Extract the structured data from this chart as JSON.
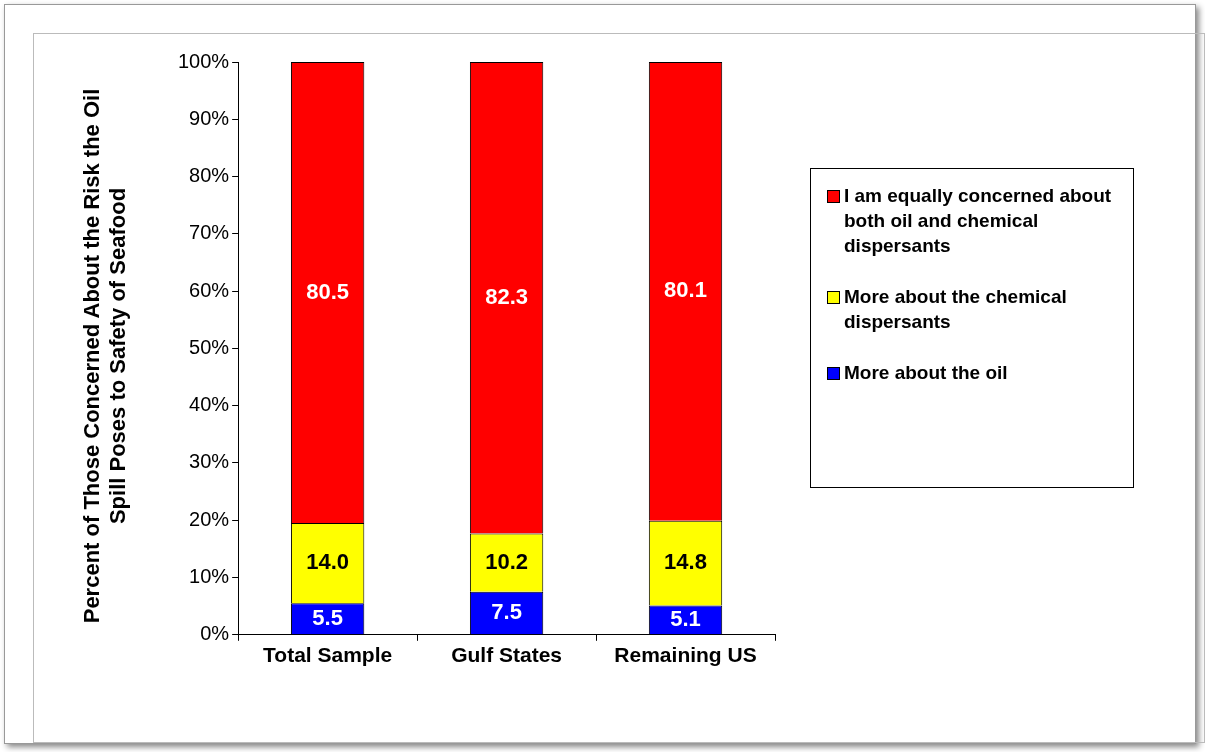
{
  "chart_data": {
    "type": "bar",
    "stacked": true,
    "ylabel": "Percent of Those Concerned About the Risk the Oil Spill Poses to Safety of Seafood",
    "categories": [
      "Total Sample",
      "Gulf States",
      "Remaining US"
    ],
    "ylim": [
      0,
      100
    ],
    "yticks": [
      {
        "value": 0,
        "label": "0%"
      },
      {
        "value": 10,
        "label": "10%"
      },
      {
        "value": 20,
        "label": "20%"
      },
      {
        "value": 30,
        "label": "30%"
      },
      {
        "value": 40,
        "label": "40%"
      },
      {
        "value": 50,
        "label": "50%"
      },
      {
        "value": 60,
        "label": "60%"
      },
      {
        "value": 70,
        "label": "70%"
      },
      {
        "value": 80,
        "label": "80%"
      },
      {
        "value": 90,
        "label": "90%"
      },
      {
        "value": 100,
        "label": "100%"
      }
    ],
    "legend": "right",
    "series": [
      {
        "name": "More about the oil",
        "color": "#0000ff",
        "values": [
          5.5,
          7.5,
          5.1
        ],
        "value_labels": [
          "5.5",
          "7.5",
          "5.1"
        ]
      },
      {
        "name": "More about the chemical dispersants",
        "color": "#ffff00",
        "values": [
          14.0,
          10.2,
          14.8
        ],
        "value_labels": [
          "14.0",
          "10.2",
          "14.8"
        ]
      },
      {
        "name": "I am equally concerned about both oil and chemical dispersants",
        "color": "#ff0000",
        "values": [
          80.5,
          82.3,
          80.1
        ],
        "value_labels": [
          "80.5",
          "82.3",
          "80.1"
        ]
      }
    ]
  }
}
